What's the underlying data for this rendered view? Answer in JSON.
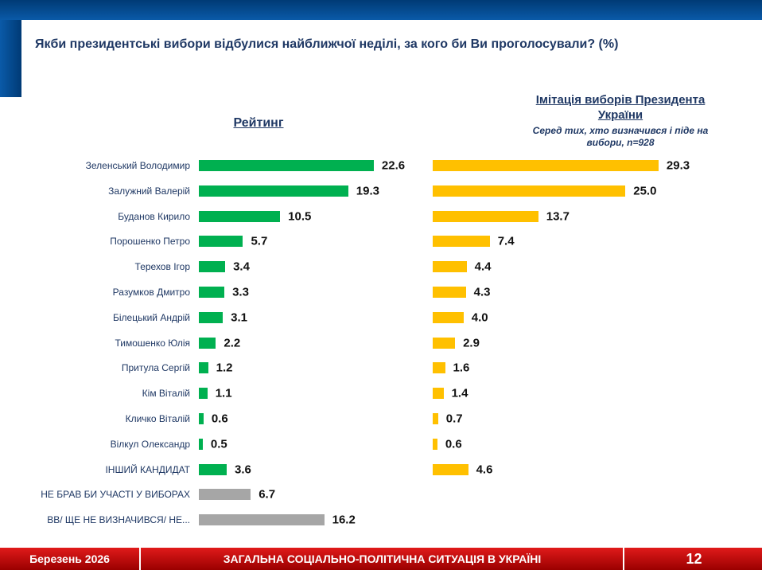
{
  "header": {
    "title": "Якби президентські вибори відбулися найближчої неділі, за кого би Ви проголосували? (%)"
  },
  "footer": {
    "date": "Березень 2026",
    "section": "ЗАГАЛЬНА СОЦІАЛЬНО-ПОЛІТИЧНА СИТУАЦІЯ В УКРАЇНІ",
    "page": "12"
  },
  "colors": {
    "rating": "#00b050",
    "imitation": "#ffc000",
    "other": "#a6a6a6"
  },
  "chart_data": {
    "type": "bar",
    "categories": [
      "Зеленський Володимир",
      "Залужний Валерій",
      "Буданов Кирило",
      "Порошенко Петро",
      "Терехов Ігор",
      "Разумков Дмитро",
      "Білецький Андрій",
      "Тимошенко Юлія",
      "Притула Сергій",
      "Кім Віталій",
      "Кличко Віталій",
      "Вілкул Олександр",
      "ІНШИЙ КАНДИДАТ",
      "НЕ БРАВ БИ УЧАСТІ У ВИБОРАХ",
      "ВВ/ ЩЕ НЕ ВИЗНАЧИВСЯ/ НЕ..."
    ],
    "series": [
      {
        "name": "Рейтинг",
        "values": [
          22.6,
          19.3,
          10.5,
          5.7,
          3.4,
          3.3,
          3.1,
          2.2,
          1.2,
          1.1,
          0.6,
          0.5,
          3.6,
          6.7,
          16.2
        ]
      },
      {
        "name": "Імітація виборів Президента України",
        "subtitle": "Серед тих, хто визначився і піде на вибори, n=928",
        "values": [
          29.3,
          25.0,
          13.7,
          7.4,
          4.4,
          4.3,
          4.0,
          2.9,
          1.6,
          1.4,
          0.7,
          0.6,
          4.6,
          null,
          null
        ]
      }
    ]
  }
}
